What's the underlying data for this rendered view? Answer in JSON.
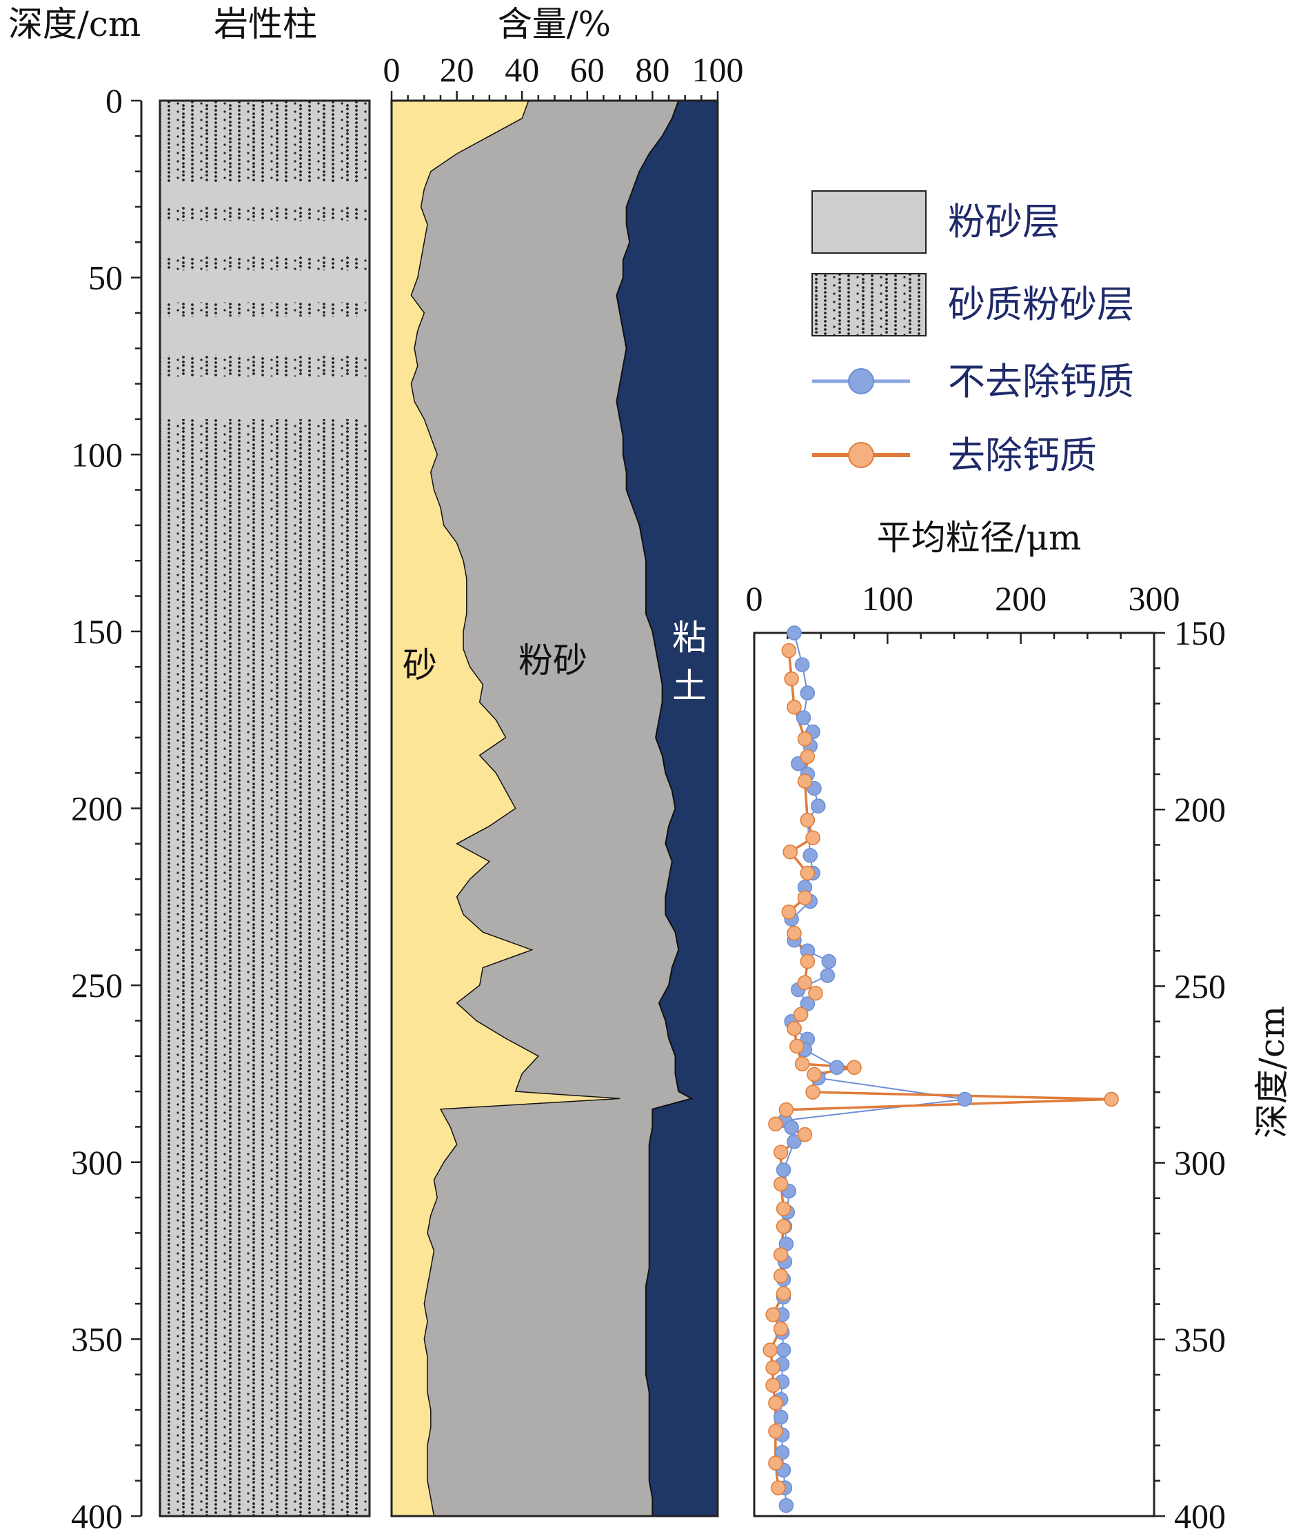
{
  "chart_data": [
    {
      "type": "table",
      "title": "岩性柱",
      "ylabel": "深度/cm",
      "ylim": [
        0,
        400
      ],
      "yticks": [
        0,
        50,
        100,
        150,
        200,
        250,
        300,
        350,
        400
      ],
      "layers": [
        {
          "type": "砂质粉砂层",
          "top": 0,
          "bottom": 23
        },
        {
          "type": "粉砂层",
          "top": 23,
          "bottom": 30
        },
        {
          "type": "砂质粉砂层",
          "top": 30,
          "bottom": 34
        },
        {
          "type": "粉砂层",
          "top": 34,
          "bottom": 44
        },
        {
          "type": "砂质粉砂层",
          "top": 44,
          "bottom": 48
        },
        {
          "type": "粉砂层",
          "top": 48,
          "bottom": 57
        },
        {
          "type": "砂质粉砂层",
          "top": 57,
          "bottom": 61
        },
        {
          "type": "粉砂层",
          "top": 61,
          "bottom": 72
        },
        {
          "type": "砂质粉砂层",
          "top": 72,
          "bottom": 78
        },
        {
          "type": "粉砂层",
          "top": 78,
          "bottom": 90
        },
        {
          "type": "砂质粉砂层",
          "top": 90,
          "bottom": 400
        }
      ]
    },
    {
      "type": "area",
      "title": "含量/%",
      "xlim": [
        0,
        100
      ],
      "xticks": [
        0,
        20,
        40,
        60,
        80,
        100
      ],
      "ylim": [
        0,
        400
      ],
      "series_labels": {
        "sand": "砂",
        "silt": "粉砂",
        "clay": "粘土"
      },
      "colors": {
        "sand": "#fde597",
        "silt": "#afacac",
        "clay": "#1e3766"
      },
      "depth": [
        0,
        5,
        10,
        15,
        20,
        25,
        30,
        35,
        40,
        45,
        50,
        55,
        60,
        65,
        70,
        75,
        80,
        85,
        90,
        95,
        100,
        105,
        110,
        115,
        120,
        125,
        130,
        135,
        140,
        145,
        150,
        155,
        160,
        165,
        170,
        175,
        180,
        185,
        190,
        195,
        200,
        205,
        210,
        215,
        220,
        225,
        230,
        235,
        240,
        245,
        250,
        255,
        260,
        265,
        270,
        275,
        280,
        282,
        285,
        290,
        295,
        300,
        305,
        310,
        315,
        320,
        325,
        330,
        335,
        340,
        345,
        350,
        355,
        360,
        365,
        370,
        375,
        380,
        385,
        390,
        395,
        400
      ],
      "sand": [
        42,
        40,
        30,
        20,
        12,
        10,
        9,
        11,
        10,
        9,
        8,
        6,
        10,
        8,
        7,
        8,
        6,
        7,
        10,
        12,
        14,
        12,
        13,
        15,
        16,
        20,
        22,
        23,
        23,
        23,
        22,
        22,
        24,
        28,
        27,
        32,
        35,
        27,
        32,
        35,
        38,
        30,
        20,
        30,
        24,
        20,
        22,
        28,
        43,
        28,
        27,
        20,
        26,
        35,
        45,
        40,
        38,
        70,
        15,
        18,
        20,
        16,
        13,
        14,
        12,
        11,
        13,
        12,
        11,
        10,
        11,
        10,
        11,
        11,
        11,
        12,
        12,
        11,
        11,
        11,
        12,
        13
      ],
      "silt_upper": [
        88,
        86,
        83,
        79,
        76,
        74,
        72,
        72,
        73,
        71,
        71,
        69,
        70,
        71,
        72,
        71,
        70,
        69,
        70,
        71,
        71,
        72,
        72,
        74,
        76,
        77,
        78,
        78,
        78,
        78,
        80,
        81,
        82,
        83,
        83,
        82,
        81,
        83,
        84,
        86,
        87,
        85,
        84,
        86,
        85,
        84,
        84,
        87,
        88,
        86,
        85,
        82,
        84,
        85,
        87,
        87,
        88,
        92,
        80,
        80,
        79,
        79,
        79,
        79,
        79,
        79,
        79,
        79,
        78,
        78,
        78,
        78,
        78,
        78,
        79,
        79,
        79,
        79,
        79,
        79,
        80,
        80
      ]
    },
    {
      "type": "line",
      "title": "平均粒径/μm",
      "ylabel": "深度/cm",
      "xlim": [
        0,
        300
      ],
      "xticks": [
        0,
        100,
        200,
        300
      ],
      "ylim": [
        150,
        400
      ],
      "yticks": [
        150,
        200,
        250,
        300,
        350,
        400
      ],
      "series": [
        {
          "name": "不去除钙质",
          "color": "#8aa6e0",
          "stroke": "#6c8ed6",
          "x": [
            30,
            36,
            40,
            37,
            44,
            42,
            33,
            40,
            45,
            48,
            40,
            42,
            44,
            38,
            42,
            28,
            30,
            40,
            56,
            55,
            33,
            40,
            28,
            30,
            40,
            38,
            62,
            48,
            158,
            23,
            28,
            30,
            22,
            26,
            25,
            23,
            24,
            23,
            22,
            22,
            21,
            21,
            22,
            21,
            21,
            20,
            20,
            21,
            21,
            22,
            23,
            24
          ],
          "y": [
            150,
            159,
            167,
            174,
            178,
            182,
            187,
            190,
            194,
            199,
            203,
            213,
            218,
            222,
            226,
            231,
            237,
            240,
            243,
            247,
            251,
            255,
            260,
            262,
            265,
            268,
            273,
            276,
            282,
            288,
            290,
            294,
            302,
            308,
            314,
            318,
            323,
            328,
            333,
            338,
            343,
            348,
            353,
            357,
            362,
            367,
            372,
            377,
            382,
            387,
            392,
            397
          ]
        },
        {
          "name": "去除钙质",
          "color": "#f4b07e",
          "stroke": "#e07b39",
          "x": [
            26,
            28,
            30,
            38,
            40,
            38,
            40,
            44,
            27,
            40,
            38,
            26,
            30,
            40,
            38,
            46,
            35,
            30,
            32,
            36,
            75,
            45,
            44,
            268,
            24,
            16,
            38,
            20,
            20,
            22,
            22,
            20,
            20,
            22,
            14,
            20,
            12,
            14,
            14,
            16,
            16,
            16,
            18
          ],
          "y": [
            155,
            163,
            171,
            180,
            185,
            192,
            203,
            208,
            212,
            218,
            225,
            229,
            235,
            243,
            249,
            252,
            258,
            262,
            267,
            272,
            273,
            275,
            280,
            282,
            285,
            289,
            292,
            297,
            306,
            313,
            318,
            326,
            332,
            337,
            343,
            347,
            353,
            358,
            363,
            368,
            376,
            385,
            392
          ]
        }
      ]
    }
  ],
  "legend": [
    {
      "label": "粉砂层",
      "kind": "fill",
      "color": "#cfcfcf"
    },
    {
      "label": "砂质粉砂层",
      "kind": "dotted",
      "color": "#cfcfcf"
    },
    {
      "label": "不去除钙质",
      "kind": "line"
    },
    {
      "label": "去除钙质",
      "kind": "line"
    }
  ]
}
